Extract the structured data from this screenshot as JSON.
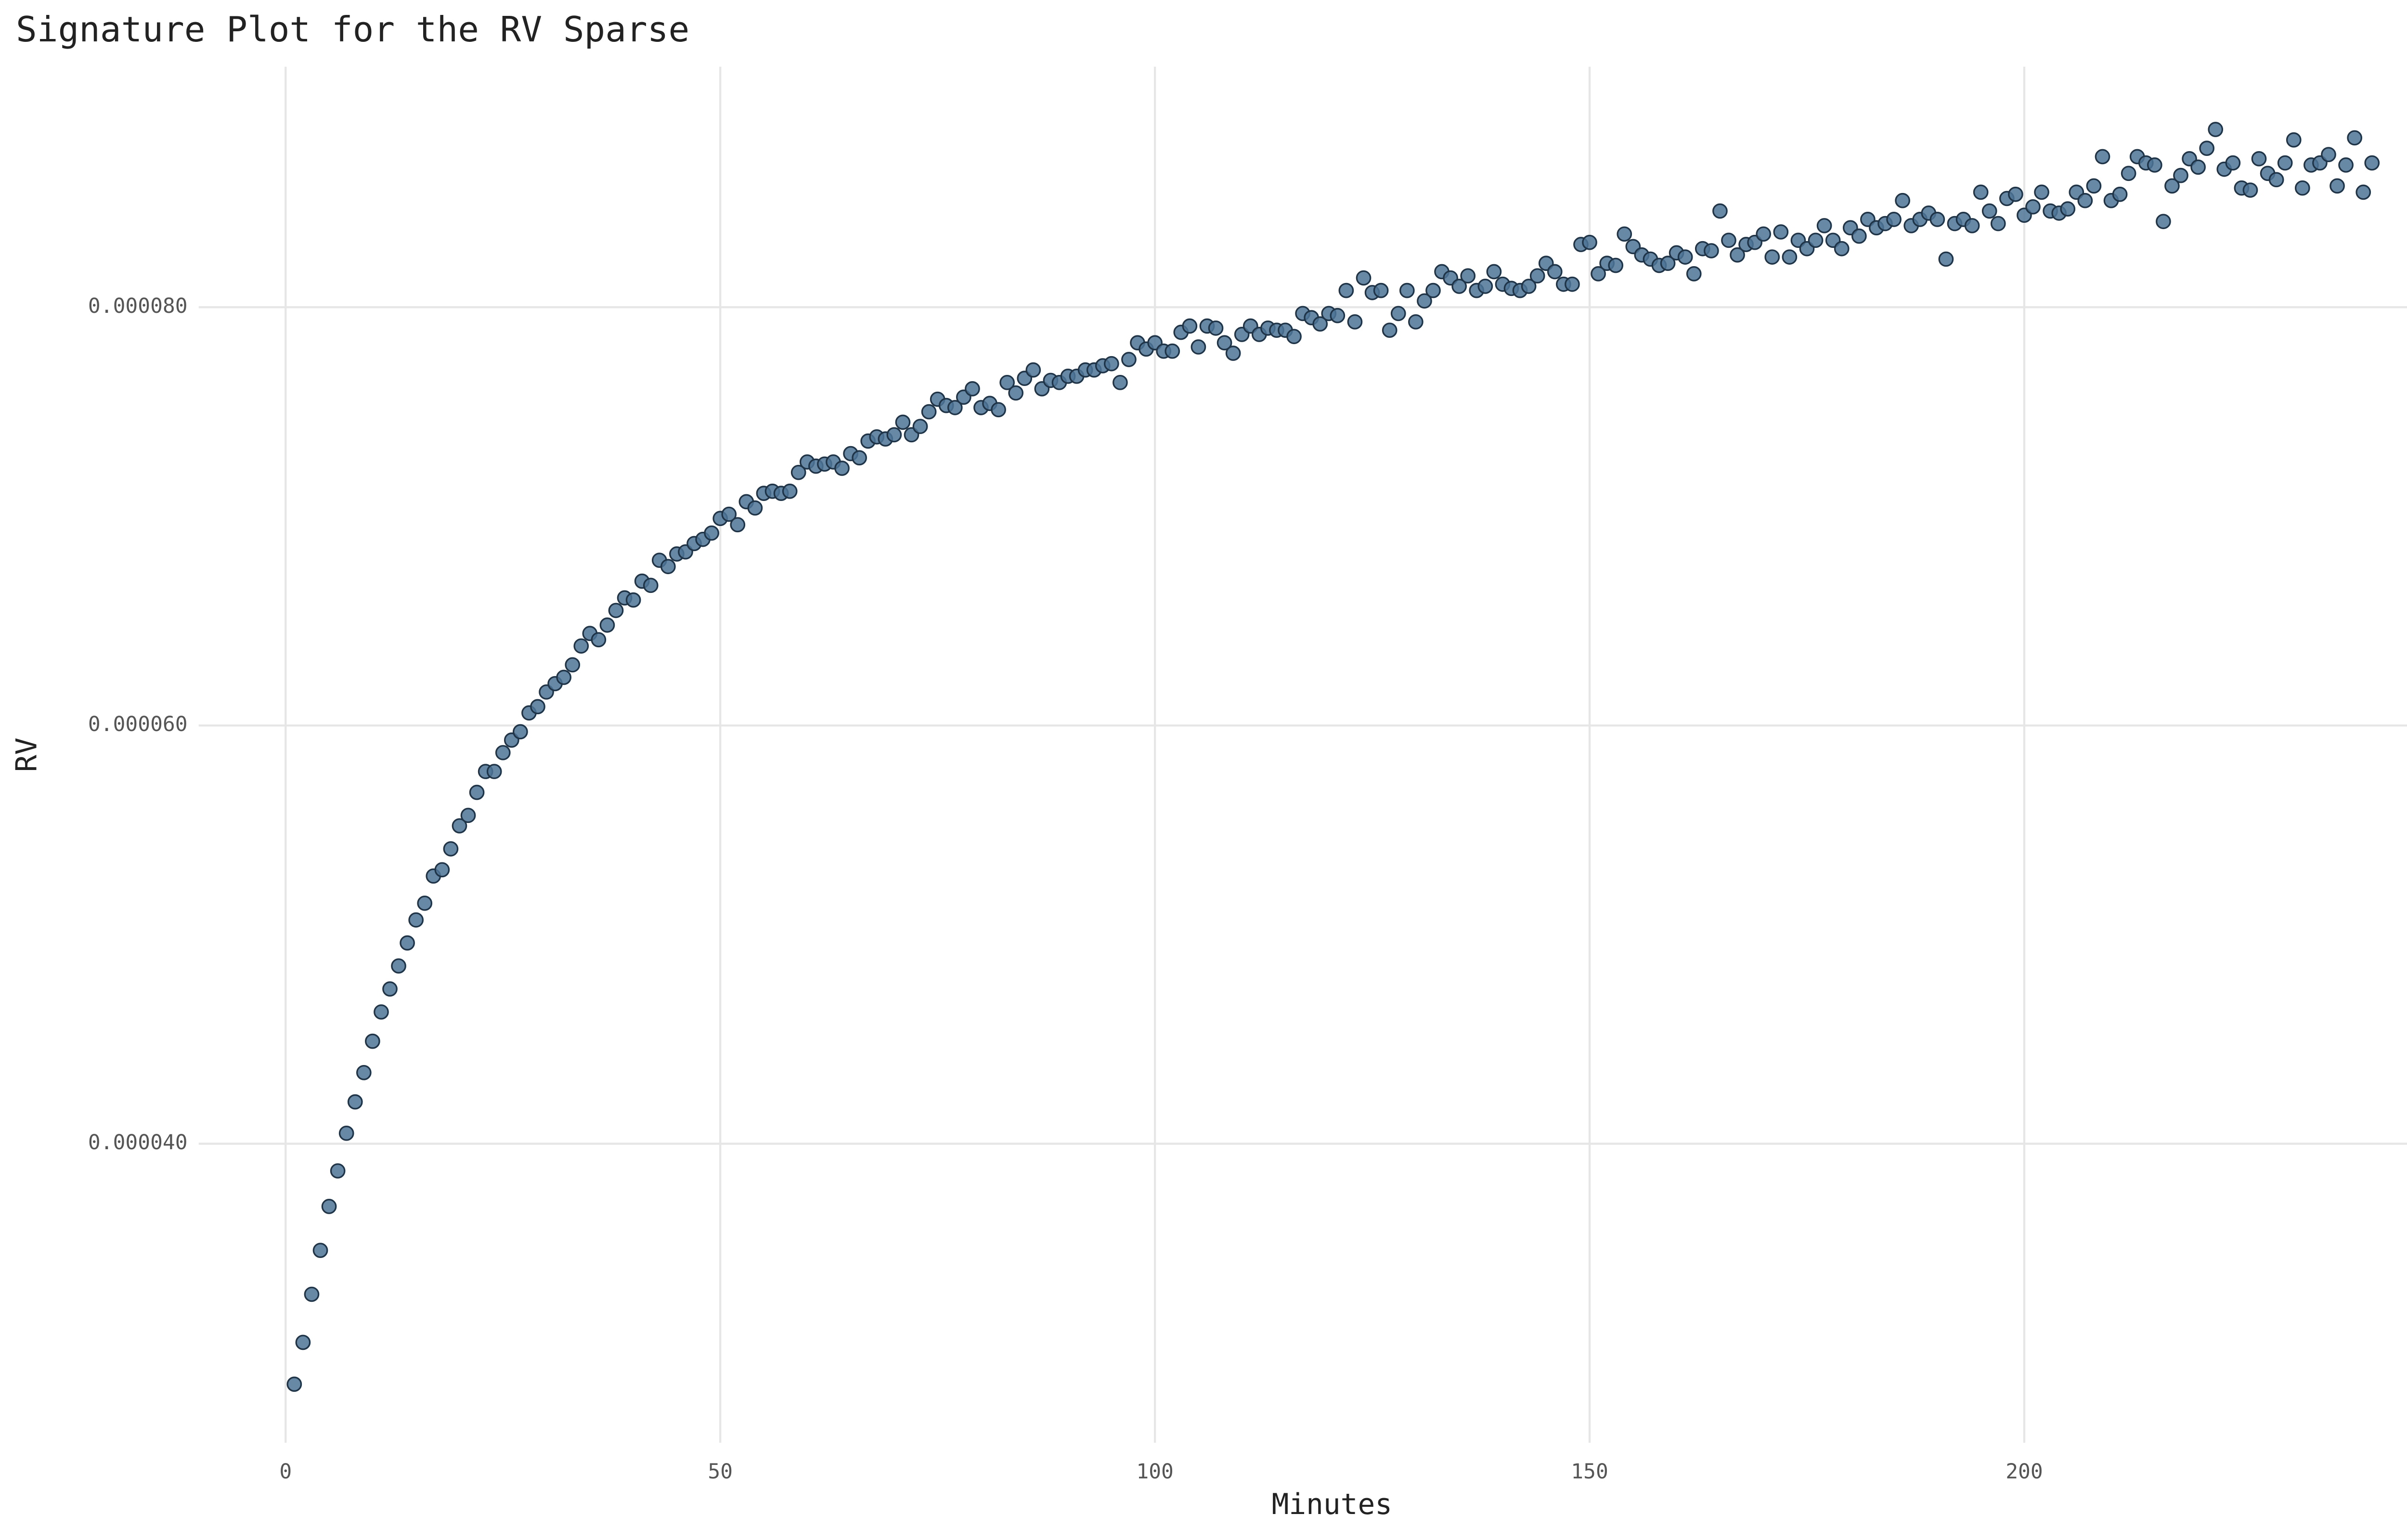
{
  "chart_data": {
    "type": "scatter",
    "title": "Signature Plot for the RV Sparse",
    "x_label": "Minutes",
    "y_label": "RV",
    "color": "#4e7496",
    "edge_color": "#1f3447",
    "grid": true,
    "xlim": [
      -10,
      252
    ],
    "ylim": [
      2.57e-05,
      9.15e-05
    ],
    "xticks": [
      0,
      50,
      100,
      150,
      200,
      250
    ],
    "yticks": [
      {
        "value": 4e-05,
        "label": "0.000040"
      },
      {
        "value": 6e-05,
        "label": "0.000060"
      },
      {
        "value": 8e-05,
        "label": "0.000080"
      }
    ],
    "x": [
      1,
      2,
      3,
      4,
      5,
      6,
      7,
      8,
      9,
      10,
      11,
      12,
      13,
      14,
      15,
      16,
      17,
      18,
      19,
      20,
      21,
      22,
      23,
      24,
      25,
      26,
      27,
      28,
      29,
      30,
      31,
      32,
      33,
      34,
      35,
      36,
      37,
      38,
      39,
      40,
      41,
      42,
      43,
      44,
      45,
      46,
      47,
      48,
      49,
      50,
      51,
      52,
      53,
      54,
      55,
      56,
      57,
      58,
      59,
      60,
      61,
      62,
      63,
      64,
      65,
      66,
      67,
      68,
      69,
      70,
      71,
      72,
      73,
      74,
      75,
      76,
      77,
      78,
      79,
      80,
      81,
      82,
      83,
      84,
      85,
      86,
      87,
      88,
      89,
      90,
      91,
      92,
      93,
      94,
      95,
      96,
      97,
      98,
      99,
      100,
      101,
      102,
      103,
      104,
      105,
      106,
      107,
      108,
      109,
      110,
      111,
      112,
      113,
      114,
      115,
      116,
      117,
      118,
      119,
      120,
      121,
      122,
      123,
      124,
      125,
      126,
      127,
      128,
      129,
      130,
      131,
      132,
      133,
      134,
      135,
      136,
      137,
      138,
      139,
      140,
      141,
      142,
      143,
      144,
      145,
      146,
      147,
      148,
      149,
      150,
      151,
      152,
      153,
      154,
      155,
      156,
      157,
      158,
      159,
      160,
      161,
      162,
      163,
      164,
      165,
      166,
      167,
      168,
      169,
      170,
      171,
      172,
      173,
      174,
      175,
      176,
      177,
      178,
      179,
      180,
      181,
      182,
      183,
      184,
      185,
      186,
      187,
      188,
      189,
      190,
      191,
      192,
      193,
      194,
      195,
      196,
      197,
      198,
      199,
      200,
      201,
      202,
      203,
      204,
      205,
      206,
      207,
      208,
      209,
      210,
      211,
      212,
      213,
      214,
      215,
      216,
      217,
      218,
      219,
      220,
      221,
      222,
      223,
      224,
      225,
      226,
      227,
      228,
      229,
      230,
      231,
      232,
      233,
      234,
      235,
      236,
      237,
      238,
      239,
      240
    ],
    "values": [
      2.85e-05,
      3.05e-05,
      3.28e-05,
      3.49e-05,
      3.7e-05,
      3.87e-05,
      4.05e-05,
      4.2e-05,
      4.34e-05,
      4.49e-05,
      4.63e-05,
      4.74e-05,
      4.85e-05,
      4.96e-05,
      5.07e-05,
      5.15e-05,
      5.28e-05,
      5.31e-05,
      5.41e-05,
      5.52e-05,
      5.57e-05,
      5.68e-05,
      5.78e-05,
      5.78e-05,
      5.87e-05,
      5.93e-05,
      5.97e-05,
      6.06e-05,
      6.09e-05,
      6.16e-05,
      6.2e-05,
      6.23e-05,
      6.29e-05,
      6.38e-05,
      6.44e-05,
      6.41e-05,
      6.48e-05,
      6.55e-05,
      6.61e-05,
      6.6e-05,
      6.69e-05,
      6.67e-05,
      6.79e-05,
      6.76e-05,
      6.82e-05,
      6.83e-05,
      6.87e-05,
      6.89e-05,
      6.92e-05,
      6.99e-05,
      7.01e-05,
      6.96e-05,
      7.07e-05,
      7.04e-05,
      7.11e-05,
      7.12e-05,
      7.11e-05,
      7.12e-05,
      7.21e-05,
      7.26e-05,
      7.24e-05,
      7.25e-05,
      7.26e-05,
      7.23e-05,
      7.3e-05,
      7.28e-05,
      7.36e-05,
      7.38e-05,
      7.37e-05,
      7.39e-05,
      7.45e-05,
      7.39e-05,
      7.43e-05,
      7.5e-05,
      7.56e-05,
      7.53e-05,
      7.52e-05,
      7.57e-05,
      7.61e-05,
      7.52e-05,
      7.54e-05,
      7.51e-05,
      7.64e-05,
      7.59e-05,
      7.66e-05,
      7.7e-05,
      7.61e-05,
      7.65e-05,
      7.64e-05,
      7.67e-05,
      7.67e-05,
      7.7e-05,
      7.7e-05,
      7.72e-05,
      7.73e-05,
      7.64e-05,
      7.75e-05,
      7.83e-05,
      7.8e-05,
      7.83e-05,
      7.79e-05,
      7.79e-05,
      7.88e-05,
      7.91e-05,
      7.81e-05,
      7.91e-05,
      7.9e-05,
      7.83e-05,
      7.78e-05,
      7.87e-05,
      7.91e-05,
      7.87e-05,
      7.9e-05,
      7.89e-05,
      7.89e-05,
      7.86e-05,
      7.97e-05,
      7.95e-05,
      7.92e-05,
      7.97e-05,
      7.96e-05,
      8.08e-05,
      7.93e-05,
      8.14e-05,
      8.07e-05,
      8.08e-05,
      7.89e-05,
      7.97e-05,
      8.08e-05,
      7.93e-05,
      8.03e-05,
      8.08e-05,
      8.17e-05,
      8.14e-05,
      8.1e-05,
      8.15e-05,
      8.08e-05,
      8.1e-05,
      8.17e-05,
      8.11e-05,
      8.09e-05,
      8.08e-05,
      8.1e-05,
      8.15e-05,
      8.21e-05,
      8.17e-05,
      8.11e-05,
      8.11e-05,
      8.3e-05,
      8.31e-05,
      8.16e-05,
      8.21e-05,
      8.2e-05,
      8.35e-05,
      8.29e-05,
      8.25e-05,
      8.23e-05,
      8.2e-05,
      8.21e-05,
      8.26e-05,
      8.24e-05,
      8.16e-05,
      8.28e-05,
      8.27e-05,
      8.46e-05,
      8.32e-05,
      8.25e-05,
      8.3e-05,
      8.31e-05,
      8.35e-05,
      8.24e-05,
      8.36e-05,
      8.24e-05,
      8.32e-05,
      8.28e-05,
      8.32e-05,
      8.39e-05,
      8.32e-05,
      8.28e-05,
      8.38e-05,
      8.34e-05,
      8.42e-05,
      8.38e-05,
      8.4e-05,
      8.42e-05,
      8.51e-05,
      8.39e-05,
      8.42e-05,
      8.45e-05,
      8.42e-05,
      8.23e-05,
      8.4e-05,
      8.42e-05,
      8.39e-05,
      8.55e-05,
      8.46e-05,
      8.4e-05,
      8.52e-05,
      8.54e-05,
      8.44e-05,
      8.48e-05,
      8.55e-05,
      8.46e-05,
      8.45e-05,
      8.47e-05,
      8.55e-05,
      8.51e-05,
      8.58e-05,
      8.72e-05,
      8.51e-05,
      8.54e-05,
      8.64e-05,
      8.72e-05,
      8.69e-05,
      8.68e-05,
      8.41e-05,
      8.58e-05,
      8.63e-05,
      8.71e-05,
      8.67e-05,
      8.76e-05,
      8.85e-05,
      8.66e-05,
      8.69e-05,
      8.57e-05,
      8.56e-05,
      8.71e-05,
      8.64e-05,
      8.61e-05,
      8.69e-05,
      8.8e-05,
      8.57e-05,
      8.68e-05,
      8.69e-05,
      8.73e-05,
      8.58e-05,
      8.68e-05,
      8.81e-05,
      8.55e-05,
      8.69e-05
    ]
  }
}
